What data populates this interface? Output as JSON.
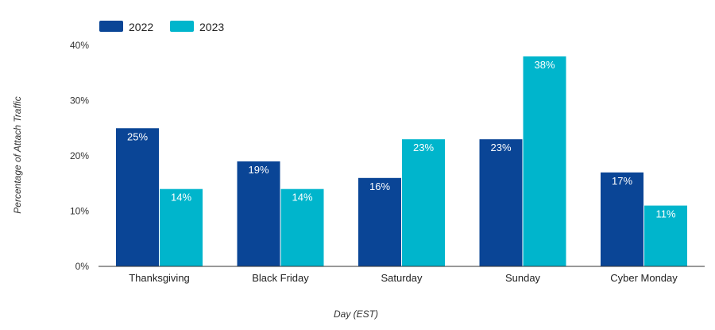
{
  "chart_data": {
    "type": "bar",
    "categories": [
      "Thanksgiving",
      "Black Friday",
      "Saturday",
      "Sunday",
      "Cyber Monday"
    ],
    "series": [
      {
        "name": "2022",
        "values": [
          25,
          19,
          16,
          23,
          17
        ],
        "labels": [
          "25%",
          "19%",
          "16%",
          "23%",
          "17%"
        ],
        "color": "#0a4596"
      },
      {
        "name": "2023",
        "values": [
          14,
          14,
          23,
          38,
          11
        ],
        "labels": [
          "14%",
          "14%",
          "23%",
          "38%",
          "11%"
        ],
        "color": "#00b5cc"
      }
    ],
    "title": "",
    "xlabel": "Day (EST)",
    "ylabel": "Percentage of Attach Traffic",
    "ylim": [
      0,
      40
    ],
    "yticks": [
      0,
      10,
      20,
      30,
      40
    ],
    "ytick_labels": [
      "0%",
      "10%",
      "20%",
      "30%",
      "40%"
    ],
    "grid": false,
    "legend_position": "top-left"
  }
}
